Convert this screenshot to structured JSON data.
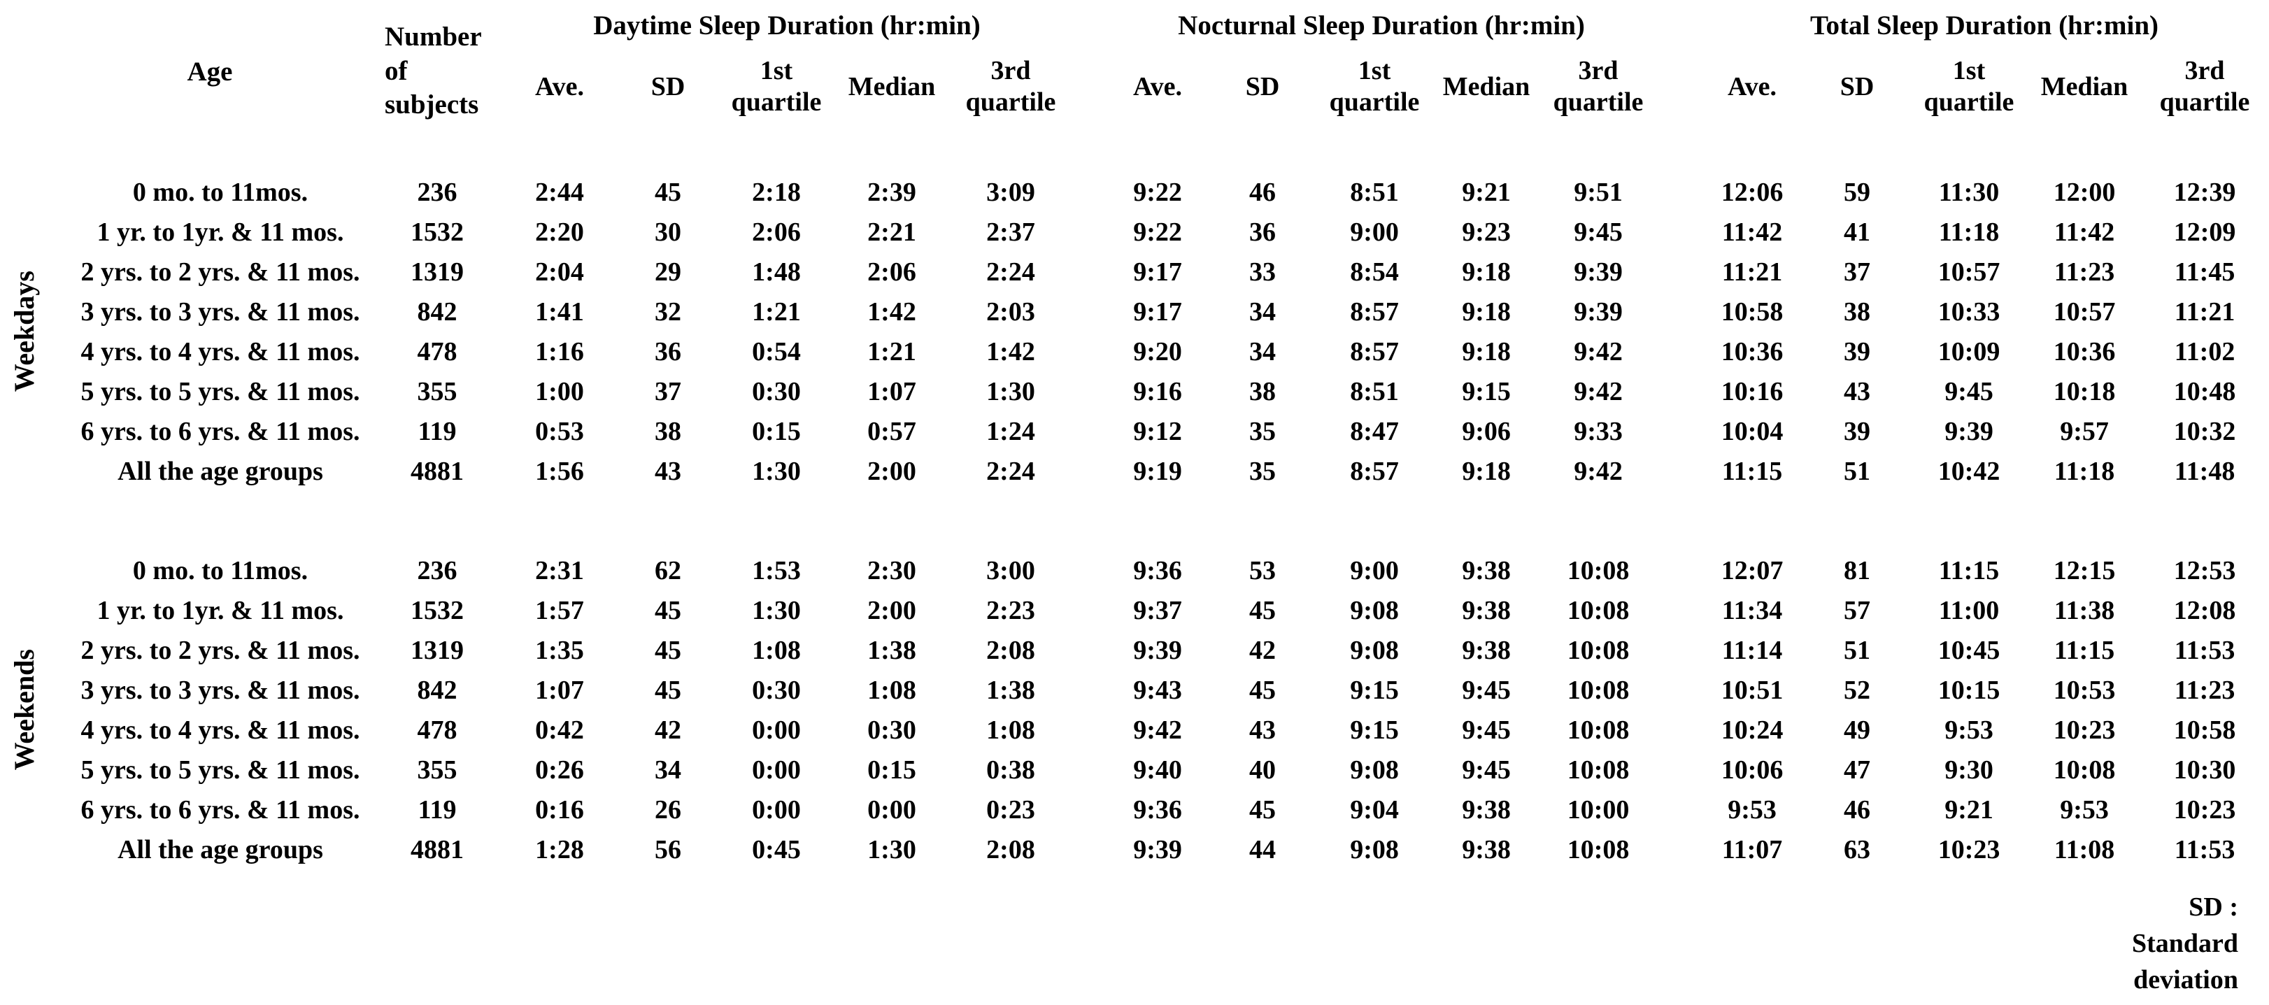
{
  "header": {
    "age": "Age",
    "number": "Number\nof subjects",
    "groups": [
      "Daytime Sleep Duration (hr:min)",
      "Nocturnal Sleep Duration (hr:min)",
      "Total Sleep Duration (hr:min)"
    ],
    "sub": [
      "Ave.",
      "SD",
      "1st\nquartile",
      "Median",
      "3rd\nquartile"
    ]
  },
  "sections": [
    {
      "label": "Weekdays",
      "rows": [
        {
          "cells": [
            "0 mo. to 11mos.",
            "236",
            "2:44",
            "45",
            "2:18",
            "2:39",
            "3:09",
            "9:22",
            "46",
            "8:51",
            "9:21",
            "9:51",
            "12:06",
            "59",
            "11:30",
            "12:00",
            "12:39"
          ]
        },
        {
          "cells": [
            "1 yr. to 1yr. & 11 mos.",
            "1532",
            "2:20",
            "30",
            "2:06",
            "2:21",
            "2:37",
            "9:22",
            "36",
            "9:00",
            "9:23",
            "9:45",
            "11:42",
            "41",
            "11:18",
            "11:42",
            "12:09"
          ]
        },
        {
          "cells": [
            "2 yrs. to 2 yrs. & 11 mos.",
            "1319",
            "2:04",
            "29",
            "1:48",
            "2:06",
            "2:24",
            "9:17",
            "33",
            "8:54",
            "9:18",
            "9:39",
            "11:21",
            "37",
            "10:57",
            "11:23",
            "11:45"
          ]
        },
        {
          "cells": [
            "3 yrs. to 3 yrs. & 11 mos.",
            "842",
            "1:41",
            "32",
            "1:21",
            "1:42",
            "2:03",
            "9:17",
            "34",
            "8:57",
            "9:18",
            "9:39",
            "10:58",
            "38",
            "10:33",
            "10:57",
            "11:21"
          ]
        },
        {
          "cells": [
            "4 yrs. to 4 yrs. & 11 mos.",
            "478",
            "1:16",
            "36",
            "0:54",
            "1:21",
            "1:42",
            "9:20",
            "34",
            "8:57",
            "9:18",
            "9:42",
            "10:36",
            "39",
            "10:09",
            "10:36",
            "11:02"
          ]
        },
        {
          "cells": [
            "5 yrs. to 5 yrs. & 11 mos.",
            "355",
            "1:00",
            "37",
            "0:30",
            "1:07",
            "1:30",
            "9:16",
            "38",
            "8:51",
            "9:15",
            "9:42",
            "10:16",
            "43",
            "9:45",
            "10:18",
            "10:48"
          ]
        },
        {
          "cells": [
            "6 yrs. to 6 yrs. & 11 mos.",
            "119",
            "0:53",
            "38",
            "0:15",
            "0:57",
            "1:24",
            "9:12",
            "35",
            "8:47",
            "9:06",
            "9:33",
            "10:04",
            "39",
            "9:39",
            "9:57",
            "10:32"
          ]
        },
        {
          "cells": [
            "All the age groups",
            "4881",
            "1:56",
            "43",
            "1:30",
            "2:00",
            "2:24",
            "9:19",
            "35",
            "8:57",
            "9:18",
            "9:42",
            "11:15",
            "51",
            "10:42",
            "11:18",
            "11:48"
          ]
        }
      ]
    },
    {
      "label": "Weekends",
      "rows": [
        {
          "cells": [
            "0 mo. to 11mos.",
            "236",
            "2:31",
            "62",
            "1:53",
            "2:30",
            "3:00",
            "9:36",
            "53",
            "9:00",
            "9:38",
            "10:08",
            "12:07",
            "81",
            "11:15",
            "12:15",
            "12:53"
          ]
        },
        {
          "cells": [
            "1 yr. to 1yr. & 11 mos.",
            "1532",
            "1:57",
            "45",
            "1:30",
            "2:00",
            "2:23",
            "9:37",
            "45",
            "9:08",
            "9:38",
            "10:08",
            "11:34",
            "57",
            "11:00",
            "11:38",
            "12:08"
          ]
        },
        {
          "cells": [
            "2 yrs. to 2 yrs. & 11 mos.",
            "1319",
            "1:35",
            "45",
            "1:08",
            "1:38",
            "2:08",
            "9:39",
            "42",
            "9:08",
            "9:38",
            "10:08",
            "11:14",
            "51",
            "10:45",
            "11:15",
            "11:53"
          ]
        },
        {
          "cells": [
            "3 yrs. to 3 yrs. & 11 mos.",
            "842",
            "1:07",
            "45",
            "0:30",
            "1:08",
            "1:38",
            "9:43",
            "45",
            "9:15",
            "9:45",
            "10:08",
            "10:51",
            "52",
            "10:15",
            "10:53",
            "11:23"
          ]
        },
        {
          "cells": [
            "4 yrs. to 4 yrs. & 11 mos.",
            "478",
            "0:42",
            "42",
            "0:00",
            "0:30",
            "1:08",
            "9:42",
            "43",
            "9:15",
            "9:45",
            "10:08",
            "10:24",
            "49",
            "9:53",
            "10:23",
            "10:58"
          ]
        },
        {
          "cells": [
            "5 yrs. to 5 yrs. & 11 mos.",
            "355",
            "0:26",
            "34",
            "0:00",
            "0:15",
            "0:38",
            "9:40",
            "40",
            "9:08",
            "9:45",
            "10:08",
            "10:06",
            "47",
            "9:30",
            "10:08",
            "10:30"
          ]
        },
        {
          "cells": [
            "6 yrs. to 6 yrs. & 11 mos.",
            "119",
            "0:16",
            "26",
            "0:00",
            "0:00",
            "0:23",
            "9:36",
            "45",
            "9:04",
            "9:38",
            "10:00",
            "9:53",
            "46",
            "9:21",
            "9:53",
            "10:23"
          ]
        },
        {
          "cells": [
            "All the age groups",
            "4881",
            "1:28",
            "56",
            "0:45",
            "1:30",
            "2:08",
            "9:39",
            "44",
            "9:08",
            "9:38",
            "10:08",
            "11:07",
            "63",
            "10:23",
            "11:08",
            "11:53"
          ]
        }
      ]
    }
  ],
  "footnote": "SD :\nStandard\ndeviation"
}
